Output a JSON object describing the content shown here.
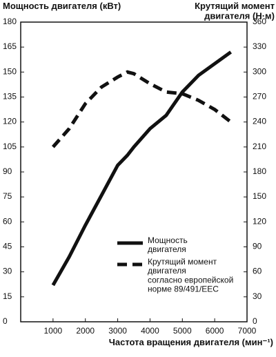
{
  "chart_data": {
    "type": "line",
    "title": "Мощность двигателя (кВт)",
    "y2_title": "Крутящий момент\nдвигателя (Н·м)",
    "x_label": "Частота вращения двигателя (мин⁻¹)",
    "x": [
      1000,
      1500,
      2000,
      2500,
      3000,
      3300,
      3500,
      4000,
      4500,
      5000,
      5500,
      6000,
      6500
    ],
    "series": [
      {
        "name": "Мощность\nдвигателя",
        "color": "#111111",
        "style": "solid",
        "axis": "y",
        "values": [
          22,
          39,
          58,
          76,
          94,
          100,
          105,
          116,
          124,
          138,
          148,
          155,
          162
        ]
      },
      {
        "name": "Крутящий момент\nдвигателя\nсогласно европейской\nнорме 89/491/EEC",
        "color": "#111111",
        "style": "dashed",
        "axis": "y2",
        "values": [
          210,
          232,
          262,
          282,
          294,
          300,
          298,
          286,
          276,
          274,
          266,
          255,
          240
        ]
      }
    ],
    "xlim": [
      0,
      7000
    ],
    "xticks": [
      1000,
      2000,
      3000,
      4000,
      5000,
      6000,
      7000
    ],
    "ylim": [
      0,
      180
    ],
    "yticks": [
      0,
      15,
      30,
      45,
      60,
      75,
      90,
      105,
      120,
      135,
      150,
      165,
      180
    ],
    "y2lim": [
      0,
      360
    ],
    "y2ticks": [
      0,
      30,
      60,
      90,
      120,
      150,
      180,
      210,
      240,
      270,
      300,
      330,
      360
    ],
    "grid": false
  }
}
